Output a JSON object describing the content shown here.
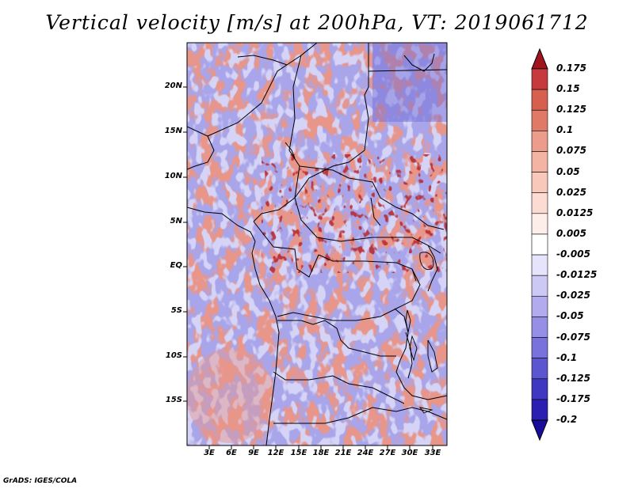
{
  "title": "Vertical velocity [m/s] at 200hPa, VT: 2019061712",
  "footer": "GrADS: IGES/COLA",
  "lat_labels": [
    "20N",
    "15N",
    "10N",
    "5N",
    "EQ",
    "5S",
    "10S",
    "15S"
  ],
  "lon_labels": [
    "3E",
    "6E",
    "9E",
    "12E",
    "15E",
    "18E",
    "21E",
    "24E",
    "27E",
    "30E",
    "33E"
  ],
  "colorbar": {
    "labels": [
      "0.175",
      "0.15",
      "0.125",
      "0.1",
      "0.075",
      "0.05",
      "0.025",
      "0.0125",
      "0.005",
      "-0.005",
      "-0.0125",
      "-0.025",
      "-0.05",
      "-0.075",
      "-0.1",
      "-0.125",
      "-0.175",
      "-0.2"
    ],
    "colors": [
      "#b2182b",
      "#c63a3e",
      "#d6604d",
      "#e07a66",
      "#ec9c8a",
      "#f4b4a4",
      "#f8c8bb",
      "#fcdcd2",
      "#fdeee9",
      "#ffffff",
      "#e6e4fb",
      "#cdc9f5",
      "#b2acee",
      "#9590e6",
      "#7a72dc",
      "#5c55d0",
      "#3f37c2",
      "#2a1fb0",
      "#1a0c9a"
    ],
    "top_color": "#a0141e",
    "bottom_color": "#1a0c9a"
  },
  "map_colors": {
    "red": "#e8958a",
    "pale_red": "#f6cfc8",
    "blue": "#9a97e8",
    "pale_blue": "#d5d4f6",
    "deep_red": "#b8282b",
    "deep_blue": "#4c47cf"
  }
}
